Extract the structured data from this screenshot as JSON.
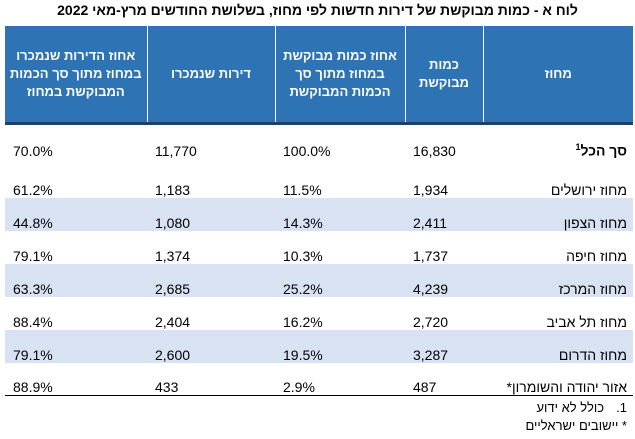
{
  "title": "לוח א - כמות מבוקשת של דירות חדשות לפי מחוז, בשלושת החודשים מרץ-מאי 2022",
  "headers": {
    "district": "מחוז",
    "requested": "כמות מבוקשת",
    "requested_share": "אחוז כמות מבוקשת במחוז מתוך סך הכמות המבוקשת",
    "sold": "דירות שנמכרו",
    "sold_share": "אחוז הדירות שנמכרו במחוז מתוך סך הכמות המבוקשת במחוז"
  },
  "rows": [
    {
      "district": "סך הכל",
      "sup": "1",
      "requested": "16,830",
      "requested_share": "100.0%",
      "sold": "11,770",
      "sold_share": "70.0%"
    },
    {
      "district": "מחוז ירושלים",
      "requested": "1,934",
      "requested_share": "11.5%",
      "sold": "1,183",
      "sold_share": "61.2%"
    },
    {
      "district": "מחוז הצפון",
      "requested": "2,411",
      "requested_share": "14.3%",
      "sold": "1,080",
      "sold_share": "44.8%"
    },
    {
      "district": "מחוז חיפה",
      "requested": "1,737",
      "requested_share": "10.3%",
      "sold": "1,374",
      "sold_share": "79.1%"
    },
    {
      "district": "מחוז המרכז",
      "requested": "4,239",
      "requested_share": "25.2%",
      "sold": "2,685",
      "sold_share": "63.3%"
    },
    {
      "district": "מחוז תל אביב",
      "requested": "2,720",
      "requested_share": "16.2%",
      "sold": "2,404",
      "sold_share": "88.4%"
    },
    {
      "district": "מחוז הדרום",
      "requested": "3,287",
      "requested_share": "19.5%",
      "sold": "2,600",
      "sold_share": "79.1%"
    },
    {
      "district": "אזור יהודה והשומרון*",
      "requested": "487",
      "requested_share": "2.9%",
      "sold": "433",
      "sold_share": "88.9%"
    }
  ],
  "footnotes": {
    "note1_num": "1.",
    "note1_text": "כולל לא ידוע",
    "note2_text": "* יישובים ישראליים"
  },
  "colors": {
    "header_bg": "#2e74b5",
    "header_text": "#ffffff",
    "alt_row_bg": "#d9e2f3"
  }
}
